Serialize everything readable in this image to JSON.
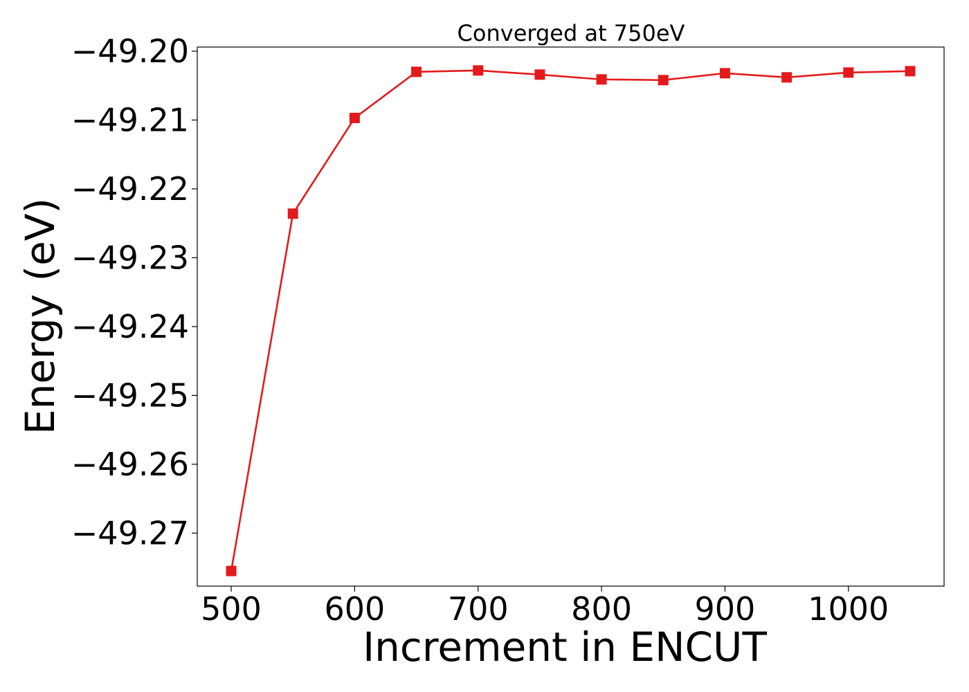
{
  "chart_data": {
    "type": "line",
    "title": "Converged at 750eV",
    "xlabel": "Increment in ENCUT",
    "ylabel": "Energy (eV)",
    "xlim": [
      472.5,
      1077.5
    ],
    "ylim": [
      -49.2777,
      -49.1994
    ],
    "x_ticks": [
      500,
      600,
      700,
      800,
      900,
      1000
    ],
    "x_tick_labels": [
      "500",
      "600",
      "700",
      "800",
      "900",
      "1000"
    ],
    "y_ticks": [
      -49.27,
      -49.26,
      -49.25,
      -49.24,
      -49.23,
      -49.22,
      -49.21,
      -49.2
    ],
    "y_tick_labels": [
      "−49.27",
      "−49.26",
      "−49.25",
      "−49.24",
      "−49.23",
      "−49.22",
      "−49.21",
      "−49.20"
    ],
    "grid": false,
    "series": [
      {
        "color": "#e31a1c",
        "marker": "square",
        "x": [
          500,
          550,
          600,
          650,
          700,
          750,
          800,
          850,
          900,
          950,
          1000,
          1050
        ],
        "y": [
          -49.2755,
          -49.2236,
          -49.2097,
          -49.203,
          -49.2028,
          -49.2034,
          -49.2041,
          -49.2042,
          -49.2032,
          -49.2038,
          -49.2031,
          -49.2029
        ]
      }
    ]
  }
}
